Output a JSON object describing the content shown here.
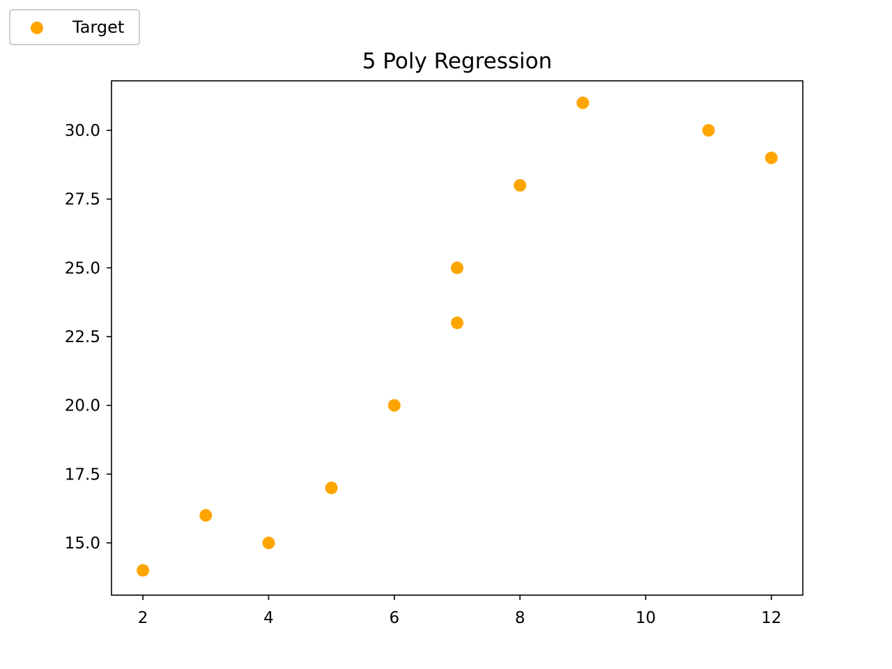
{
  "colors": {
    "marker": "#ffa500",
    "axes": "#000000",
    "background": "#ffffff",
    "legend_border": "#cccccc"
  },
  "chart_data": {
    "type": "scatter",
    "title": "5 Poly Regression",
    "xlabel": "",
    "ylabel": "",
    "xlim": [
      1.5,
      12.5
    ],
    "ylim": [
      13.1,
      31.8
    ],
    "xticks": [
      2,
      4,
      6,
      8,
      10,
      12
    ],
    "xtick_labels": [
      "2",
      "4",
      "6",
      "8",
      "10",
      "12"
    ],
    "yticks": [
      15.0,
      17.5,
      20.0,
      22.5,
      25.0,
      27.5,
      30.0
    ],
    "ytick_labels": [
      "15.0",
      "17.5",
      "20.0",
      "22.5",
      "25.0",
      "27.5",
      "30.0"
    ],
    "grid": false,
    "legend": {
      "placement": "outside-top-left",
      "entries": [
        "Target"
      ]
    },
    "series": [
      {
        "name": "Target",
        "color": "#ffa500",
        "points": [
          {
            "x": 2,
            "y": 14
          },
          {
            "x": 3,
            "y": 16
          },
          {
            "x": 4,
            "y": 15
          },
          {
            "x": 5,
            "y": 17
          },
          {
            "x": 6,
            "y": 20
          },
          {
            "x": 7,
            "y": 23
          },
          {
            "x": 7,
            "y": 25
          },
          {
            "x": 8,
            "y": 28
          },
          {
            "x": 9,
            "y": 31
          },
          {
            "x": 11,
            "y": 30
          },
          {
            "x": 12,
            "y": 29
          }
        ]
      }
    ]
  }
}
